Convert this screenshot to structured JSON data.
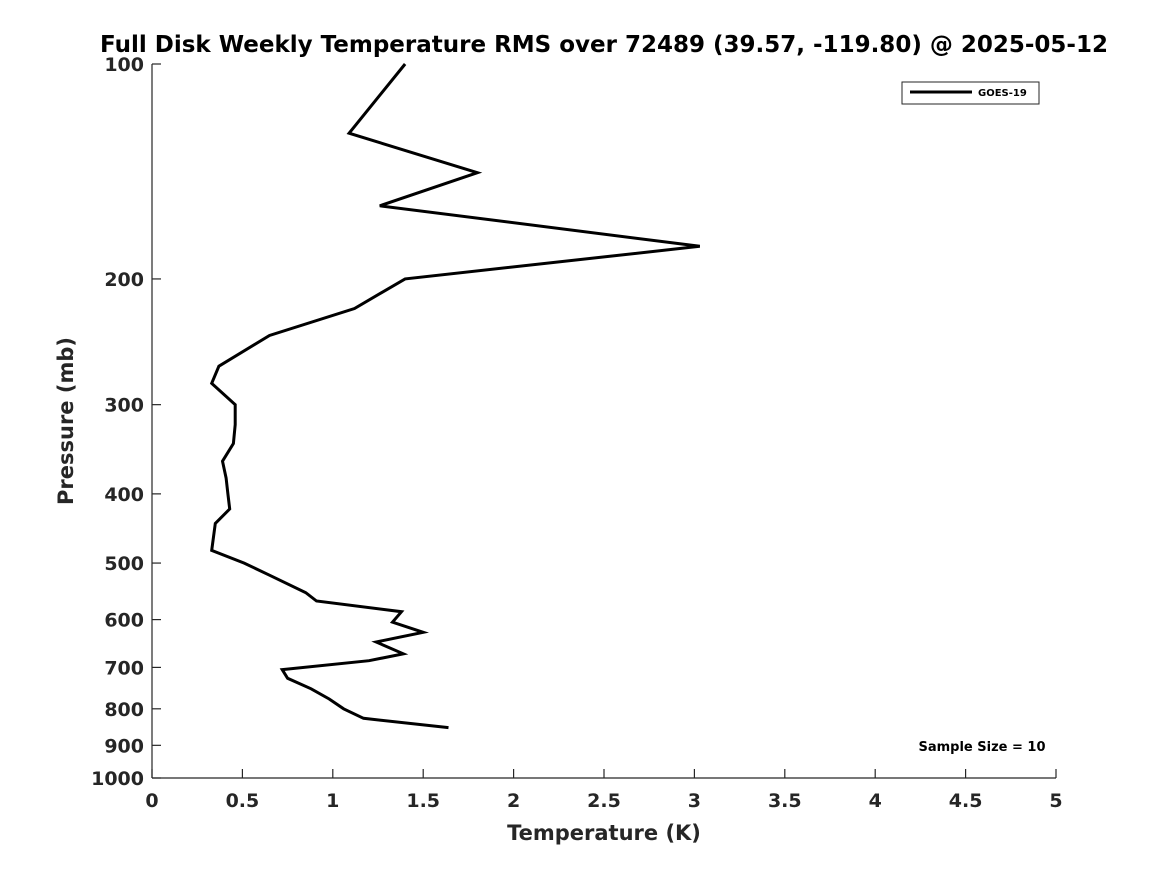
{
  "chart_data": {
    "type": "line",
    "title": "Full Disk Weekly Temperature RMS over 72489 (39.57, -119.80) @ 2025-05-12",
    "xlabel": "Temperature (K)",
    "ylabel": "Pressure (mb)",
    "xlim": [
      0,
      5
    ],
    "ylim": [
      100,
      1000
    ],
    "y_scale": "log",
    "y_reversed": true,
    "x_ticks": [
      "0",
      "0.5",
      "1",
      "1.5",
      "2",
      "2.5",
      "3",
      "3.5",
      "4",
      "4.5",
      "5"
    ],
    "x_tick_values": [
      0,
      0.5,
      1,
      1.5,
      2,
      2.5,
      3,
      3.5,
      4,
      4.5,
      5
    ],
    "y_ticks": [
      "100",
      "200",
      "300",
      "400",
      "500",
      "600",
      "700",
      "800",
      "900",
      "1000"
    ],
    "y_tick_values": [
      100,
      200,
      300,
      400,
      500,
      600,
      700,
      800,
      900,
      1000
    ],
    "grid": false,
    "legend_position": "top-right",
    "series": [
      {
        "name": "GOES-19",
        "color": "#000000",
        "points": [
          {
            "x": 1.4,
            "y": 100
          },
          {
            "x": 1.09,
            "y": 125
          },
          {
            "x": 1.8,
            "y": 142
          },
          {
            "x": 1.26,
            "y": 158
          },
          {
            "x": 3.03,
            "y": 180
          },
          {
            "x": 1.4,
            "y": 200
          },
          {
            "x": 1.12,
            "y": 220
          },
          {
            "x": 0.65,
            "y": 240
          },
          {
            "x": 0.37,
            "y": 265
          },
          {
            "x": 0.33,
            "y": 280
          },
          {
            "x": 0.46,
            "y": 300
          },
          {
            "x": 0.46,
            "y": 320
          },
          {
            "x": 0.45,
            "y": 340
          },
          {
            "x": 0.39,
            "y": 360
          },
          {
            "x": 0.41,
            "y": 380
          },
          {
            "x": 0.42,
            "y": 400
          },
          {
            "x": 0.43,
            "y": 420
          },
          {
            "x": 0.35,
            "y": 440
          },
          {
            "x": 0.33,
            "y": 480
          },
          {
            "x": 0.51,
            "y": 500
          },
          {
            "x": 0.65,
            "y": 520
          },
          {
            "x": 0.85,
            "y": 550
          },
          {
            "x": 0.91,
            "y": 565
          },
          {
            "x": 1.38,
            "y": 585
          },
          {
            "x": 1.33,
            "y": 605
          },
          {
            "x": 1.5,
            "y": 625
          },
          {
            "x": 1.24,
            "y": 645
          },
          {
            "x": 1.39,
            "y": 670
          },
          {
            "x": 1.2,
            "y": 685
          },
          {
            "x": 0.72,
            "y": 705
          },
          {
            "x": 0.75,
            "y": 725
          },
          {
            "x": 0.88,
            "y": 750
          },
          {
            "x": 0.98,
            "y": 775
          },
          {
            "x": 1.06,
            "y": 800
          },
          {
            "x": 1.17,
            "y": 825
          },
          {
            "x": 1.64,
            "y": 850
          }
        ]
      }
    ],
    "annotations": [
      {
        "text": "Sample Size = 10",
        "position": "bottom-right"
      }
    ]
  }
}
